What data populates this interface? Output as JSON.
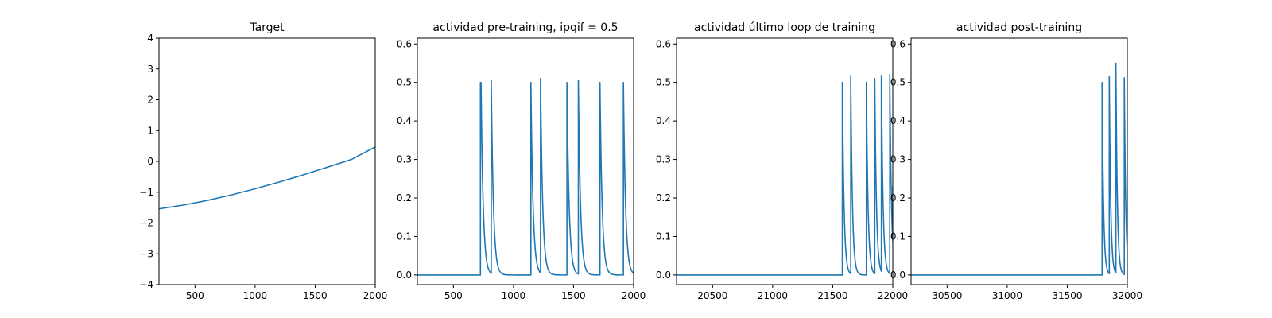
{
  "chart_data": [
    {
      "type": "line",
      "title": "Target",
      "xlabel": "",
      "ylabel": "",
      "xlim": [
        200,
        2000
      ],
      "ylim": [
        -4,
        4
      ],
      "xticks": [
        500,
        1000,
        1500,
        2000
      ],
      "yticks": [
        -4,
        -3,
        -2,
        -1,
        0,
        1,
        2,
        3,
        4
      ],
      "grid": false,
      "series": [
        {
          "color": "#1f77b4",
          "x": [
            200,
            400,
            600,
            800,
            1000,
            1200,
            1400,
            1600,
            1800,
            2000
          ],
          "y": [
            -1.54,
            -1.42,
            -1.27,
            -1.09,
            -0.89,
            -0.67,
            -0.44,
            -0.19,
            0.06,
            0.47
          ]
        }
      ]
    },
    {
      "type": "line",
      "title": "actividad pre-training, ipqif = 0.5",
      "xlabel": "",
      "ylabel": "",
      "xlim": [
        200,
        2000
      ],
      "ylim": [
        -0.025,
        0.615
      ],
      "xticks": [
        500,
        1000,
        1500,
        2000
      ],
      "yticks": [
        0.0,
        0.1,
        0.2,
        0.3,
        0.4,
        0.5,
        0.6
      ],
      "grid": false,
      "series": [
        {
          "color": "#1f77b4",
          "spikes": [
            {
              "t": 725,
              "peak": 0.5
            },
            {
              "t": 730,
              "peak": 0.5
            },
            {
              "t": 815,
              "peak": 0.505
            },
            {
              "t": 1145,
              "peak": 0.5
            },
            {
              "t": 1225,
              "peak": 0.51
            },
            {
              "t": 1445,
              "peak": 0.5
            },
            {
              "t": 1540,
              "peak": 0.505
            },
            {
              "t": 1720,
              "peak": 0.5
            },
            {
              "t": 1915,
              "peak": 0.5
            }
          ],
          "decay": 18
        }
      ]
    },
    {
      "type": "line",
      "title": "actividad último loop de training",
      "xlabel": "",
      "ylabel": "",
      "xlim": [
        20200,
        22000
      ],
      "ylim": [
        -0.025,
        0.615
      ],
      "xticks": [
        20500,
        21000,
        21500,
        22000
      ],
      "yticks": [
        0.0,
        0.1,
        0.2,
        0.3,
        0.4,
        0.5,
        0.6
      ],
      "grid": false,
      "series": [
        {
          "color": "#1f77b4",
          "spikes": [
            {
              "t": 21580,
              "peak": 0.5
            },
            {
              "t": 21650,
              "peak": 0.518
            },
            {
              "t": 21780,
              "peak": 0.5
            },
            {
              "t": 21850,
              "peak": 0.51
            },
            {
              "t": 21905,
              "peak": 0.518
            },
            {
              "t": 21975,
              "peak": 0.52
            }
          ],
          "decay": 14,
          "end_value": 0.23
        }
      ]
    },
    {
      "type": "line",
      "title": "actividad post-training",
      "xlabel": "",
      "ylabel": "",
      "xlim": [
        30200,
        32000
      ],
      "ylim": [
        -0.025,
        0.615
      ],
      "xticks": [
        30500,
        31000,
        31500,
        32000
      ],
      "yticks": [
        0.0,
        0.1,
        0.2,
        0.3,
        0.4,
        0.5,
        0.6
      ],
      "grid": false,
      "series": [
        {
          "color": "#1f77b4",
          "spikes": [
            {
              "t": 31790,
              "peak": 0.5
            },
            {
              "t": 31850,
              "peak": 0.515
            },
            {
              "t": 31905,
              "peak": 0.55
            },
            {
              "t": 31975,
              "peak": 0.512
            }
          ],
          "decay": 12,
          "end_value": 0.22
        }
      ]
    }
  ]
}
